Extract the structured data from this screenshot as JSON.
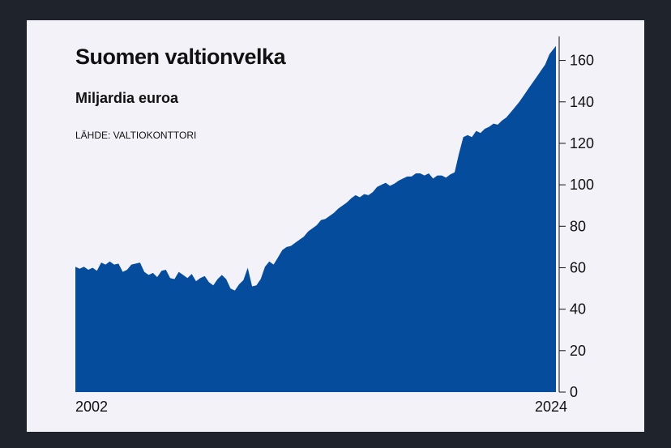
{
  "header": {
    "title": "Suomen valtionvelka",
    "subtitle": "Miljardia euroa",
    "source": "LÄHDE: VALTIOKONTTORI"
  },
  "colors": {
    "area": "#064c9c",
    "background": "#f3f2f8",
    "frame": "#1f232b"
  },
  "chart_data": {
    "type": "area",
    "title": "Suomen valtionvelka",
    "subtitle": "Miljardia euroa",
    "source": "LÄHDE: VALTIOKONTTORI",
    "xlabel": "",
    "ylabel": "",
    "x_tick_labels": [
      "2002",
      "2024"
    ],
    "x_range": [
      2002,
      2024.3
    ],
    "ylim": [
      0,
      170
    ],
    "y_ticks": [
      0,
      20,
      40,
      60,
      80,
      100,
      120,
      140,
      160
    ],
    "y_axis_side": "right",
    "grid": false,
    "legend": "none",
    "series": [
      {
        "name": "",
        "x": [
          2002.0,
          2002.2,
          2002.4,
          2002.6,
          2002.8,
          2003.0,
          2003.2,
          2003.4,
          2003.6,
          2003.8,
          2004.0,
          2004.2,
          2004.4,
          2004.6,
          2004.8,
          2005.0,
          2005.2,
          2005.4,
          2005.6,
          2005.8,
          2006.0,
          2006.2,
          2006.4,
          2006.6,
          2006.8,
          2007.0,
          2007.2,
          2007.4,
          2007.6,
          2007.8,
          2008.0,
          2008.2,
          2008.4,
          2008.6,
          2008.8,
          2009.0,
          2009.2,
          2009.4,
          2009.6,
          2009.8,
          2010.0,
          2010.2,
          2010.4,
          2010.6,
          2010.8,
          2011.0,
          2011.2,
          2011.4,
          2011.6,
          2011.8,
          2012.0,
          2012.2,
          2012.4,
          2012.6,
          2012.8,
          2013.0,
          2013.2,
          2013.4,
          2013.6,
          2013.8,
          2014.0,
          2014.2,
          2014.4,
          2014.6,
          2014.8,
          2015.0,
          2015.2,
          2015.4,
          2015.6,
          2015.8,
          2016.0,
          2016.2,
          2016.4,
          2016.6,
          2016.8,
          2017.0,
          2017.2,
          2017.4,
          2017.6,
          2017.8,
          2018.0,
          2018.2,
          2018.4,
          2018.6,
          2018.8,
          2019.0,
          2019.2,
          2019.4,
          2019.6,
          2019.8,
          2020.0,
          2020.2,
          2020.4,
          2020.6,
          2020.8,
          2021.0,
          2021.2,
          2021.4,
          2021.6,
          2021.8,
          2022.0,
          2022.2,
          2022.4,
          2022.6,
          2022.8,
          2023.0,
          2023.2,
          2023.4,
          2023.6,
          2023.8,
          2024.0,
          2024.15,
          2024.3
        ],
        "values": [
          60.5,
          59.5,
          60.5,
          59.0,
          60.0,
          58.5,
          62.5,
          61.5,
          63.0,
          61.5,
          62.0,
          58.0,
          59.0,
          61.5,
          62.0,
          62.5,
          58.0,
          56.5,
          57.5,
          55.5,
          58.5,
          59.0,
          55.0,
          54.5,
          58.0,
          56.5,
          55.0,
          57.0,
          53.5,
          55.0,
          56.0,
          53.0,
          51.5,
          54.5,
          56.5,
          54.5,
          50.0,
          49.0,
          52.0,
          54.0,
          60.0,
          51.0,
          51.5,
          54.5,
          60.5,
          63.0,
          61.5,
          65.0,
          68.5,
          70.0,
          70.5,
          72.0,
          73.5,
          75.0,
          77.5,
          79.0,
          80.5,
          83.0,
          83.5,
          85.0,
          86.5,
          88.5,
          90.0,
          91.5,
          93.5,
          95.0,
          94.0,
          95.5,
          95.0,
          96.5,
          99.0,
          100.0,
          101.0,
          99.5,
          100.5,
          102.0,
          103.0,
          104.0,
          104.0,
          105.5,
          105.5,
          104.5,
          105.5,
          103.0,
          104.5,
          104.5,
          103.5,
          105.0,
          106.0,
          115.0,
          123.0,
          124.0,
          123.0,
          126.0,
          125.0,
          127.0,
          128.0,
          129.5,
          129.0,
          131.0,
          132.5,
          135.0,
          137.5,
          140.0,
          143.0,
          146.0,
          149.0,
          152.0,
          155.0,
          158.0,
          163.0,
          165.0,
          167.0
        ]
      }
    ]
  }
}
